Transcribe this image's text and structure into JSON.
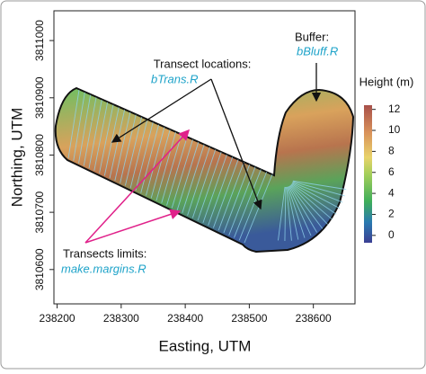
{
  "chart_data": {
    "type": "raster",
    "x_label": "Easting, UTM",
    "y_label": "Northing, UTM",
    "xlim": [
      238195,
      238665
    ],
    "xticks": [
      238200,
      238300,
      238400,
      238500,
      238600
    ],
    "ylim": [
      3810540,
      3811052
    ],
    "yticks": [
      3810600,
      3810700,
      3810800,
      3810900,
      3811000
    ],
    "colorbar": {
      "label": "Height (m)",
      "lim": [
        -0.7,
        12.4
      ],
      "ticks": [
        0,
        2,
        4,
        6,
        8,
        10,
        12
      ]
    },
    "annotations": [
      {
        "text": "Transect locations:",
        "script": "bTrans.R"
      },
      {
        "text": "Buffer:",
        "script": "bBluff.R"
      },
      {
        "text": "Transects limits:",
        "script": "make.margins.R"
      }
    ]
  }
}
